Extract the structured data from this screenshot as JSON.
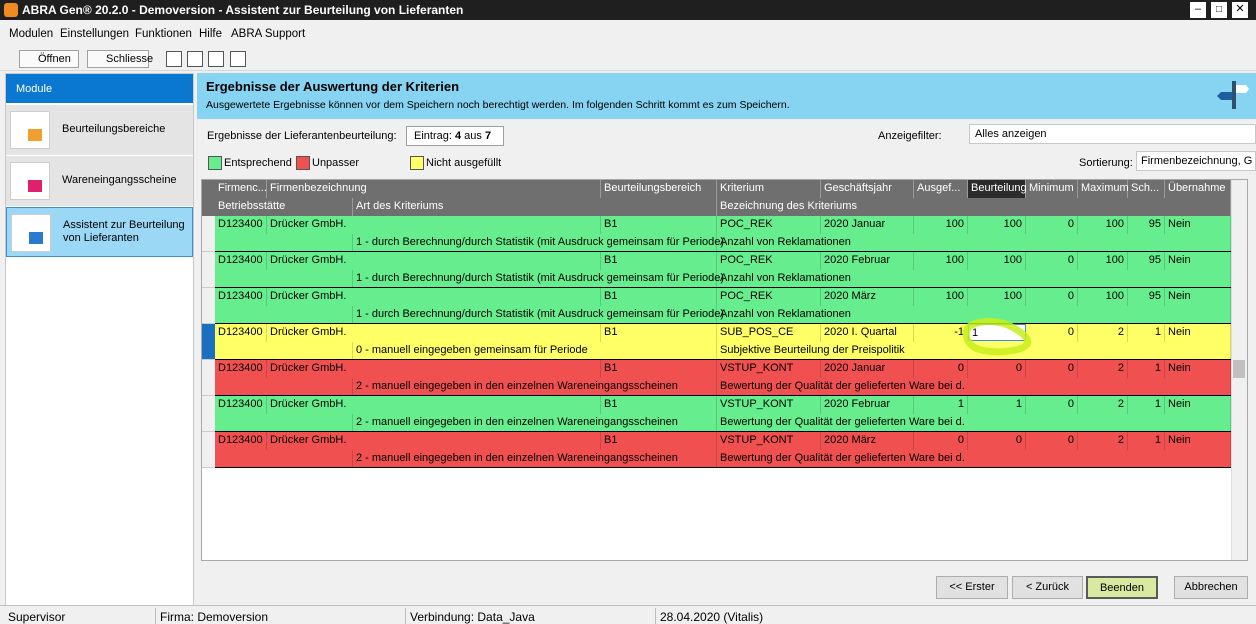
{
  "title_bar": {
    "title": "ABRA Gen® 20.2.0 - Demoversion - Assistent zur Beurteilung von Lieferanten"
  },
  "menu": [
    "Modulen",
    "Einstellungen",
    "Funktionen",
    "Hilfe",
    "ABRA Support"
  ],
  "toolbar": [
    "Öffnen",
    "Schliesse"
  ],
  "sidebar": {
    "header": "Module",
    "items": [
      "Beurteilungsbereiche",
      "Wareneingangsscheine",
      "Assistent zur Beurteilung von Lieferanten"
    ]
  },
  "content": {
    "title": "Ergebnisse der Auswertung der Kriterien",
    "subtitle": "Ausgewertete Ergebnisse können vor dem Speichern noch berechtigt werden. Im folgenden Schritt kommt es zum Speichern.",
    "entry_label": "Ergebnisse der Lieferantenbeurteilung:",
    "entry": {
      "prefix": "Eintrag:",
      "current": 4,
      "separator": "aus",
      "total": 7
    },
    "filter_label": "Anzeigefilter:",
    "filter_value": "Alles anzeigen",
    "legend": [
      {
        "label": "Entsprechend",
        "color": "#66ee8e"
      },
      {
        "label": "Unpasser",
        "color": "#f05050"
      },
      {
        "label": "Nicht ausgefüllt",
        "color": "#ffff66"
      }
    ],
    "sort_label": "Sortierung:",
    "sort_value": "Firmenbezeichnung, G"
  },
  "table": {
    "columns": [
      "Firmenc...",
      "Firmenbezeichnung",
      "Beurteilungsbereich",
      "Kriterium",
      "Geschäftsjahr",
      "Ausgef...",
      "Beurteilung",
      "Minimum",
      "Maximum",
      "Sch...",
      "Übernahme"
    ],
    "subcolumns": [
      "Betriebsstätte",
      "Art des Kriteriums",
      "Bezeichnung des Kriteriums"
    ],
    "rows": [
      {
        "color": "#66ee8e",
        "cells": [
          "D123400",
          "Drücker GmbH.",
          "B1",
          "POC_REK",
          "2020 Januar",
          100,
          100,
          0,
          100,
          95,
          "Nein"
        ],
        "sub": [
          "1 - durch Berechnung/durch Statistik (mit Ausdruck gemeinsam für Periode)",
          "Anzahl von Reklamationen"
        ]
      },
      {
        "color": "#66ee8e",
        "cells": [
          "D123400",
          "Drücker GmbH.",
          "B1",
          "POC_REK",
          "2020 Februar",
          100,
          100,
          0,
          100,
          95,
          "Nein"
        ],
        "sub": [
          "1 - durch Berechnung/durch Statistik (mit Ausdruck gemeinsam für Periode)",
          "Anzahl von Reklamationen"
        ]
      },
      {
        "color": "#66ee8e",
        "cells": [
          "D123400",
          "Drücker GmbH.",
          "B1",
          "POC_REK",
          "2020 März",
          100,
          100,
          0,
          100,
          95,
          "Nein"
        ],
        "sub": [
          "1 - durch Berechnung/durch Statistik (mit Ausdruck gemeinsam für Periode)",
          "Anzahl von Reklamationen"
        ]
      },
      {
        "color": "#ffff66",
        "cells": [
          "D123400",
          "Drücker GmbH.",
          "B1",
          "SUB_POS_CE",
          "2020 I. Quartal",
          -1,
          1,
          0,
          2,
          1,
          "Nein"
        ],
        "sub": [
          "0 - manuell eingegeben gemeinsam für Periode",
          "Subjektive Beurteilung der Preispolitik"
        ]
      },
      {
        "color": "#f05050",
        "cells": [
          "D123400",
          "Drücker GmbH.",
          "B1",
          "VSTUP_KONT",
          "2020 Januar",
          0,
          0,
          0,
          2,
          1,
          "Nein"
        ],
        "sub": [
          "2 -  manuell eingegeben in den einzelnen Wareneingangsscheinen",
          "Bewertung der Qualität der gelieferten Ware bei d."
        ]
      },
      {
        "color": "#66ee8e",
        "cells": [
          "D123400",
          "Drücker GmbH.",
          "B1",
          "VSTUP_KONT",
          "2020 Februar",
          1,
          1,
          0,
          2,
          1,
          "Nein"
        ],
        "sub": [
          "2 -  manuell eingegeben in den einzelnen Wareneingangsscheinen",
          "Bewertung der Qualität der gelieferten Ware bei d."
        ]
      },
      {
        "color": "#f05050",
        "cells": [
          "D123400",
          "Drücker GmbH.",
          "B1",
          "VSTUP_KONT",
          "2020 März",
          0,
          0,
          0,
          2,
          1,
          "Nein"
        ],
        "sub": [
          "2 -  manuell eingegeben in den einzelnen Wareneingangsscheinen",
          "Bewertung der Qualität der gelieferten Ware bei d."
        ]
      }
    ]
  },
  "buttons": [
    "<< Erster",
    "< Zurück",
    "Beenden",
    "Abbrechen"
  ],
  "status_bar": [
    "Supervisor",
    "Firma: Demoversion",
    "Verbindung: Data_Java",
    "28.04.2020 (Vitalis)"
  ]
}
